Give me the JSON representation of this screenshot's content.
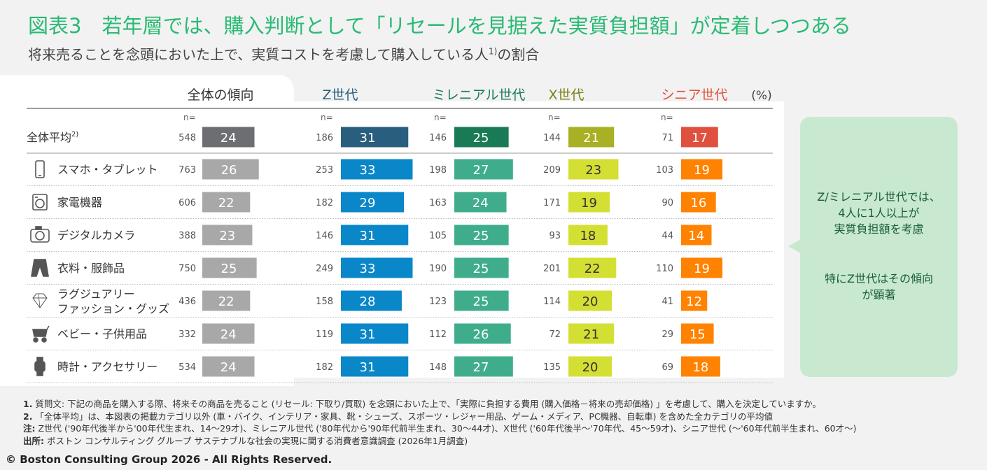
{
  "title": "図表3　若年層では、購入判断として「リセールを見据えた実質負担額」が定着しつつある",
  "subtitle": "将来売ることを念頭においた上で、実質コストを考慮して購入している人",
  "subtitle_sup": "1)",
  "subtitle_tail": "の割合",
  "unit_label": "(%)",
  "n_label": "n=",
  "colors": {
    "overall": "#6d6e71",
    "overall_light": "#a8a8a8",
    "z": "#295e7e",
    "z_light": "#0a87c8",
    "millennial": "#197a56",
    "millennial_light": "#3fad8c",
    "x": "#a8b023",
    "x_light": "#d4df33",
    "senior": "#e0503e",
    "senior_light": "#ff8200",
    "callout_bg": "#c8e9d0",
    "title": "#29ba74"
  },
  "chart_data": {
    "type": "bar",
    "groups": [
      {
        "name": "全体の傾向",
        "color": "#333333"
      },
      {
        "name": "Z世代",
        "color": "#295e7e"
      },
      {
        "name": "ミレニアル世代",
        "color": "#197a56"
      },
      {
        "name": "X世代",
        "color": "#7a7f10"
      },
      {
        "name": "シニア世代",
        "color": "#e0503e"
      }
    ],
    "categories": [
      "全体平均",
      "スマホ・タブレット",
      "家電機器",
      "デジタルカメラ",
      "衣料・服飾品",
      "ラグジュアリー\nファッション・グッズ",
      "ベビー・子供用品",
      "時計・アクセサリー"
    ],
    "category_sup": [
      "2)",
      "",
      "",
      "",
      "",
      "",
      "",
      ""
    ],
    "category_icons": [
      "",
      "smartphone-icon",
      "washing-machine-icon",
      "camera-icon",
      "clothing-icon",
      "diamond-icon",
      "stroller-icon",
      "watch-icon"
    ],
    "series": [
      {
        "name": "全体の傾向",
        "values": [
          24,
          26,
          22,
          23,
          25,
          22,
          24,
          24
        ],
        "n": [
          548,
          763,
          606,
          388,
          750,
          436,
          332,
          534
        ]
      },
      {
        "name": "Z世代",
        "values": [
          31,
          33,
          29,
          31,
          33,
          28,
          31,
          31
        ],
        "n": [
          186,
          253,
          182,
          146,
          249,
          158,
          119,
          182
        ]
      },
      {
        "name": "ミレニアル世代",
        "values": [
          25,
          27,
          24,
          25,
          25,
          25,
          26,
          27
        ],
        "n": [
          146,
          198,
          163,
          105,
          190,
          123,
          112,
          148
        ]
      },
      {
        "name": "X世代",
        "values": [
          21,
          23,
          19,
          18,
          22,
          20,
          21,
          20
        ],
        "n": [
          144,
          209,
          171,
          93,
          201,
          114,
          72,
          135
        ]
      },
      {
        "name": "シニア世代",
        "values": [
          17,
          19,
          16,
          14,
          19,
          12,
          15,
          18
        ],
        "n": [
          71,
          103,
          90,
          44,
          110,
          41,
          29,
          69
        ]
      }
    ]
  },
  "callout": {
    "line1": "Z/ミレニアル世代では、",
    "line2": "4人に1人以上が",
    "line3": "実質負担額を考慮",
    "line4": "特にZ世代はその傾向",
    "line5": "が顕著"
  },
  "footnotes": {
    "n1_label": "1.",
    "n1": " 質問文: 下記の商品を購入する際、将来その商品を売ること (リセール: 下取り/買取) を念頭においた上で、「実際に負担する費用 (購入価格－将来の売却価格) 」を考慮して、購入を決定していますか。",
    "n2_label": "2.",
    "n2": " 「全体平均」は、本図表の掲載カテゴリ以外 (車・バイク、インテリア・家具、靴・シューズ、スポーツ・レジャー用品、ゲーム・メディア、PC機器、自転車) を含めた全カテゴリの平均値",
    "note_label": "注:",
    "note": " Z世代 ('90年代後半から'00年代生まれ、14～29才)、ミレニアル世代 ('80年代から'90年代前半生まれ、30～44才)、X世代 ('60年代後半～'70年代、45～59才)、シニア世代 (～'60年代前半生まれ、60才～)",
    "source_label": "出所:",
    "source": " ボストン コンサルティング グループ サステナブルな社会の実現に関する消費者意識調査 (2026年1月調査)"
  },
  "copyright": "© Boston Consulting Group 2026 - All Rights Reserved."
}
